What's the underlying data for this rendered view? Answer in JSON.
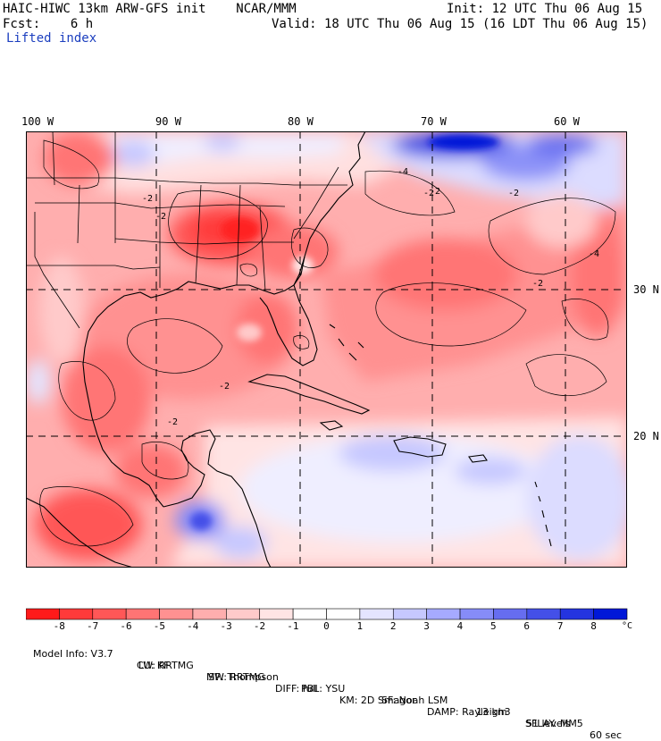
{
  "header": {
    "title": "HAIC-HIWC 13km ARW-GFS init    NCAR/MMM",
    "init": "Init: 12 UTC Thu 06 Aug 15",
    "fcst": "Fcst:    6 h",
    "valid": "Valid: 18 UTC Thu 06 Aug 15 (16 LDT Thu 06 Aug 15)",
    "field": "Lifted index"
  },
  "map": {
    "lon_labels": [
      "100 W",
      "90 W",
      "80 W",
      "70 W",
      "60 W"
    ],
    "lat_labels": [
      "30 N",
      "20 N"
    ],
    "contour_labels": [
      "-2",
      "-2",
      "-2",
      "-4",
      "-2",
      "-2",
      "-2",
      "-2",
      "-2",
      "-4"
    ]
  },
  "colorbar": {
    "ticks": [
      "-8",
      "-7",
      "-6",
      "-5",
      "-4",
      "-3",
      "-2",
      "-1",
      "0",
      "1",
      "2",
      "3",
      "4",
      "5",
      "6",
      "7",
      "8"
    ],
    "unit": "°C",
    "colors": [
      "#ff1a1a",
      "#ff3a3a",
      "#ff5757",
      "#ff7474",
      "#ff9191",
      "#ffaeae",
      "#ffcaca",
      "#ffe4e4",
      "#ffffff",
      "#e4e4ff",
      "#c6c8ff",
      "#a6aaff",
      "#868cf8",
      "#666df0",
      "#4450e8",
      "#2434e0",
      "#0018d8"
    ]
  },
  "footer": {
    "line1": [
      "Model Info: V3.7",
      "CU: KF",
      "MP: Thompson",
      "PBL: YSU",
      "SF: Noah LSM",
      "13 km",
      "51 levels",
      "60 sec"
    ],
    "line2": [
      "LW: RRTMG",
      "SW: RRTMG",
      "DIFF: full",
      "KM: 2D Smagor",
      "DAMP: Rayleigh3",
      "SFLAY: MM5"
    ]
  }
}
